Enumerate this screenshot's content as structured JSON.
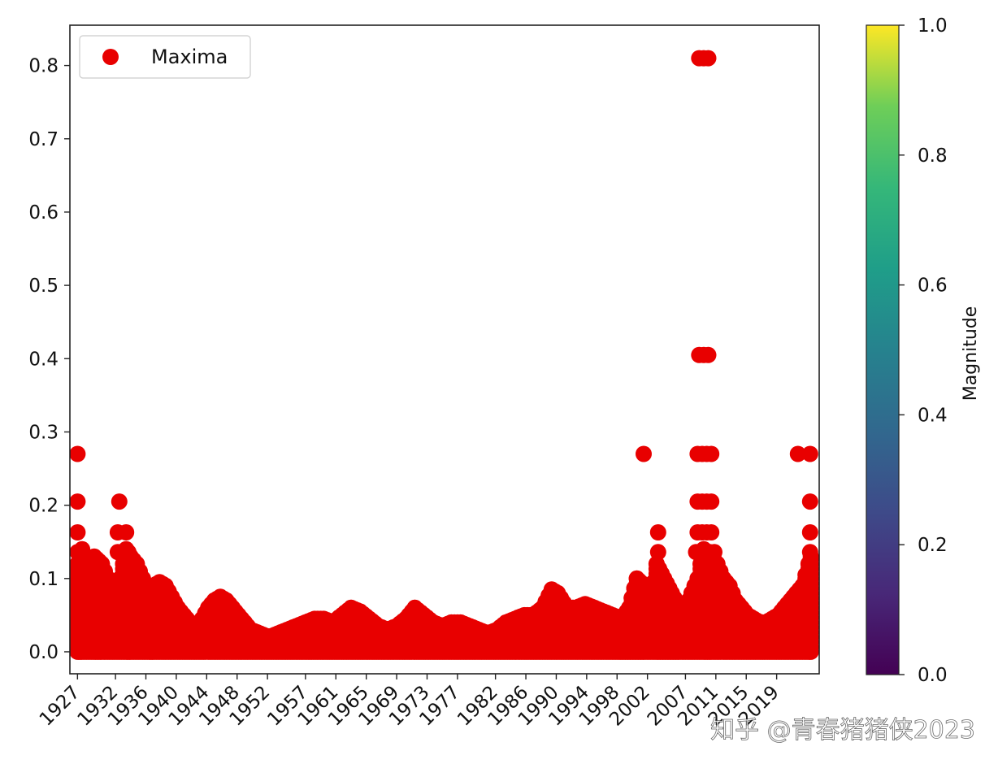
{
  "chart_data": {
    "type": "scatter",
    "title": "",
    "xlabel": "",
    "ylabel": "",
    "ylim": [
      -0.03,
      0.855
    ],
    "yticks": [
      0.0,
      0.1,
      0.2,
      0.3,
      0.4,
      0.5,
      0.6,
      0.7,
      0.8
    ],
    "ytick_labels": [
      "0.0",
      "0.1",
      "0.2",
      "0.3",
      "0.4",
      "0.5",
      "0.6",
      "0.7",
      "0.8"
    ],
    "xticks": [
      "1927",
      "1932",
      "1936",
      "1940",
      "1944",
      "1948",
      "1952",
      "1957",
      "1961",
      "1965",
      "1969",
      "1973",
      "1977",
      "1982",
      "1986",
      "1990",
      "1994",
      "1998",
      "2002",
      "2007",
      "2011",
      "2015",
      "2019"
    ],
    "xlim": [
      1926.0,
      2024.6
    ],
    "grid": false,
    "legend": {
      "placement": "upper-left",
      "entries": [
        {
          "label": "Maxima",
          "color": "#e80000"
        }
      ]
    },
    "colorbar": {
      "label": "Magnitude",
      "range": [
        0.0,
        1.0
      ],
      "ticks": [
        "0.0",
        "0.2",
        "0.4",
        "0.6",
        "0.8",
        "1.0"
      ],
      "colormap": "viridis"
    },
    "series": [
      {
        "name": "Maxima",
        "color": "#e80000",
        "envelope": [
          [
            1927.0,
            0.12
          ],
          [
            1927.6,
            0.14
          ],
          [
            1928.4,
            0.11
          ],
          [
            1929.2,
            0.13
          ],
          [
            1930.2,
            0.12
          ],
          [
            1931.0,
            0.1
          ],
          [
            1931.8,
            0.09
          ],
          [
            1932.6,
            0.1
          ],
          [
            1933.4,
            0.14
          ],
          [
            1934.0,
            0.13
          ],
          [
            1934.8,
            0.12
          ],
          [
            1935.6,
            0.1
          ],
          [
            1936.4,
            0.08
          ],
          [
            1937.0,
            0.09
          ],
          [
            1937.8,
            0.095
          ],
          [
            1938.6,
            0.09
          ],
          [
            1939.4,
            0.075
          ],
          [
            1940.2,
            0.06
          ],
          [
            1941.0,
            0.05
          ],
          [
            1941.8,
            0.04
          ],
          [
            1942.6,
            0.035
          ],
          [
            1943.4,
            0.045
          ],
          [
            1944.2,
            0.06
          ],
          [
            1945.0,
            0.07
          ],
          [
            1945.8,
            0.075
          ],
          [
            1946.6,
            0.07
          ],
          [
            1947.4,
            0.06
          ],
          [
            1948.2,
            0.05
          ],
          [
            1949.0,
            0.04
          ],
          [
            1949.8,
            0.03
          ],
          [
            1951.0,
            0.025
          ],
          [
            1952.2,
            0.02
          ],
          [
            1953.4,
            0.025
          ],
          [
            1954.6,
            0.03
          ],
          [
            1955.8,
            0.035
          ],
          [
            1957.0,
            0.04
          ],
          [
            1958.2,
            0.045
          ],
          [
            1959.4,
            0.045
          ],
          [
            1960.6,
            0.04
          ],
          [
            1961.8,
            0.05
          ],
          [
            1963.0,
            0.06
          ],
          [
            1964.2,
            0.055
          ],
          [
            1965.4,
            0.045
          ],
          [
            1966.6,
            0.035
          ],
          [
            1967.8,
            0.03
          ],
          [
            1969.0,
            0.035
          ],
          [
            1970.2,
            0.045
          ],
          [
            1971.4,
            0.06
          ],
          [
            1972.6,
            0.05
          ],
          [
            1973.8,
            0.04
          ],
          [
            1975.0,
            0.035
          ],
          [
            1976.2,
            0.04
          ],
          [
            1977.4,
            0.04
          ],
          [
            1978.6,
            0.035
          ],
          [
            1979.8,
            0.03
          ],
          [
            1981.0,
            0.025
          ],
          [
            1982.2,
            0.03
          ],
          [
            1983.4,
            0.04
          ],
          [
            1984.6,
            0.045
          ],
          [
            1985.8,
            0.05
          ],
          [
            1987.0,
            0.05
          ],
          [
            1988.2,
            0.06
          ],
          [
            1989.4,
            0.085
          ],
          [
            1990.2,
            0.08
          ],
          [
            1991.4,
            0.06
          ],
          [
            1992.6,
            0.06
          ],
          [
            1993.8,
            0.065
          ],
          [
            1995.0,
            0.06
          ],
          [
            1996.2,
            0.055
          ],
          [
            1997.4,
            0.05
          ],
          [
            1998.6,
            0.045
          ],
          [
            1999.6,
            0.06
          ],
          [
            2000.6,
            0.1
          ],
          [
            2001.6,
            0.09
          ],
          [
            2002.4,
            0.07
          ],
          [
            2003.2,
            0.12
          ],
          [
            2004.2,
            0.1
          ],
          [
            2005.2,
            0.08
          ],
          [
            2006.2,
            0.06
          ],
          [
            2007.4,
            0.07
          ],
          [
            2008.6,
            0.1
          ],
          [
            2009.4,
            0.14
          ],
          [
            2010.4,
            0.13
          ],
          [
            2011.2,
            0.12
          ],
          [
            2012.0,
            0.1
          ],
          [
            2012.8,
            0.09
          ],
          [
            2013.6,
            0.07
          ],
          [
            2014.4,
            0.06
          ],
          [
            2015.2,
            0.05
          ],
          [
            2016.0,
            0.045
          ],
          [
            2016.8,
            0.04
          ],
          [
            2017.6,
            0.04
          ],
          [
            2018.4,
            0.045
          ],
          [
            2019.2,
            0.05
          ],
          [
            2020.0,
            0.06
          ],
          [
            2020.8,
            0.07
          ],
          [
            2021.6,
            0.08
          ],
          [
            2022.4,
            0.09
          ],
          [
            2023.2,
            0.12
          ],
          [
            2023.8,
            0.14
          ]
        ],
        "peaks": [
          [
            1927.0,
            0.27
          ],
          [
            1927.0,
            0.205
          ],
          [
            1927.0,
            0.163
          ],
          [
            1927.0,
            0.136
          ],
          [
            1932.5,
            0.205
          ],
          [
            1932.3,
            0.163
          ],
          [
            1933.4,
            0.163
          ],
          [
            1932.3,
            0.136
          ],
          [
            1933.0,
            0.136
          ],
          [
            1933.7,
            0.136
          ],
          [
            2001.5,
            0.27
          ],
          [
            2003.4,
            0.163
          ],
          [
            2003.4,
            0.136
          ],
          [
            2008.8,
            0.81
          ],
          [
            2009.4,
            0.81
          ],
          [
            2010.0,
            0.81
          ],
          [
            2008.8,
            0.405
          ],
          [
            2009.4,
            0.405
          ],
          [
            2010.0,
            0.405
          ],
          [
            2008.6,
            0.27
          ],
          [
            2009.2,
            0.27
          ],
          [
            2009.8,
            0.27
          ],
          [
            2010.4,
            0.27
          ],
          [
            2008.6,
            0.205
          ],
          [
            2009.2,
            0.205
          ],
          [
            2009.8,
            0.205
          ],
          [
            2010.4,
            0.205
          ],
          [
            2008.6,
            0.163
          ],
          [
            2009.2,
            0.163
          ],
          [
            2009.8,
            0.163
          ],
          [
            2010.4,
            0.163
          ],
          [
            2008.4,
            0.136
          ],
          [
            2009.0,
            0.136
          ],
          [
            2009.6,
            0.136
          ],
          [
            2010.2,
            0.136
          ],
          [
            2010.8,
            0.136
          ],
          [
            2021.8,
            0.27
          ],
          [
            2023.4,
            0.27
          ],
          [
            2023.4,
            0.205
          ],
          [
            2023.4,
            0.163
          ],
          [
            2023.4,
            0.136
          ]
        ]
      }
    ]
  },
  "watermark": {
    "text": "知乎 @青春猪猪侠2023"
  }
}
